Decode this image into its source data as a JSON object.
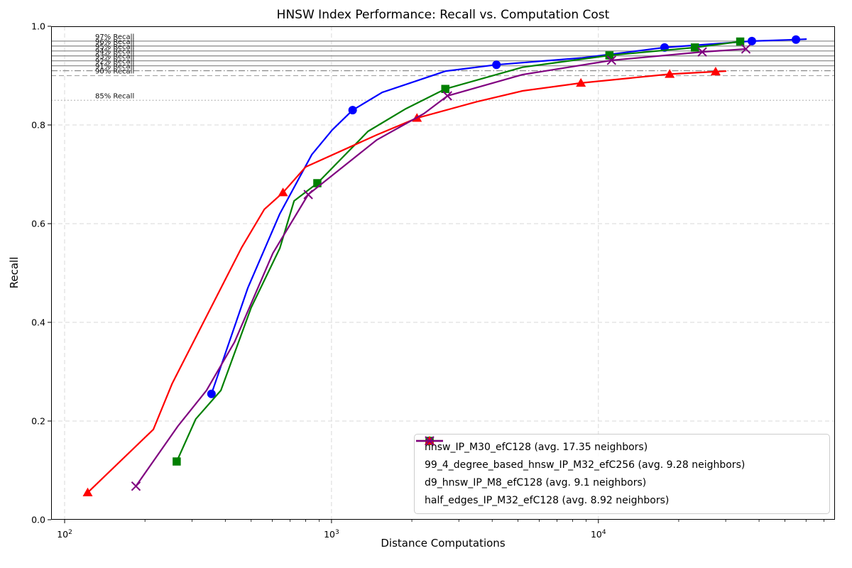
{
  "chart_data": {
    "type": "line",
    "title": "HNSW Index Performance: Recall vs. Computation Cost",
    "xlabel": "Distance Computations",
    "ylabel": "Recall",
    "x_scale": "log",
    "xlim": [
      89,
      77000
    ],
    "ylim": [
      0.0,
      1.0
    ],
    "x_ticks": [
      100,
      1000,
      10000
    ],
    "y_ticks": [
      0.0,
      0.2,
      0.4,
      0.6,
      0.8,
      1.0
    ],
    "grid": {
      "show": true,
      "style": "dashed",
      "color": "#d9d9d9"
    },
    "legend_position": "lower right",
    "reference_lines": [
      {
        "value": 0.97,
        "label": "97% Recall",
        "style": "solid"
      },
      {
        "value": 0.96,
        "label": "96% Recall",
        "style": "solid"
      },
      {
        "value": 0.95,
        "label": "95% Recall",
        "style": "solid"
      },
      {
        "value": 0.94,
        "label": "94% Recall",
        "style": "solid"
      },
      {
        "value": 0.93,
        "label": "93% Recall",
        "style": "solid"
      },
      {
        "value": 0.92,
        "label": "92% Recall",
        "style": "solid"
      },
      {
        "value": 0.91,
        "label": "91% Recall",
        "style": "dashdot"
      },
      {
        "value": 0.9,
        "label": "90% Recall",
        "style": "dashed"
      },
      {
        "value": 0.85,
        "label": "85% Recall",
        "style": "dotted"
      }
    ],
    "series": [
      {
        "label": "hnsw_IP_M30_efC128 (avg. 17.35 neighbors)",
        "color": "#0000ff",
        "marker": "circle",
        "points": [
          [
            355,
            0.255
          ],
          [
            486,
            0.47
          ],
          [
            640,
            0.62
          ],
          [
            844,
            0.74
          ],
          [
            1007,
            0.79
          ],
          [
            1200,
            0.83
          ],
          [
            1550,
            0.866
          ],
          [
            2675,
            0.909
          ],
          [
            4150,
            0.922
          ],
          [
            8700,
            0.936
          ],
          [
            17700,
            0.957
          ],
          [
            37600,
            0.97
          ],
          [
            55000,
            0.973
          ],
          [
            60000,
            0.974
          ]
        ],
        "marker_indices": [
          0,
          5,
          8,
          10,
          11,
          12
        ]
      },
      {
        "label": "99_4_degree_based_hnsw_IP_M32_efC256 (avg. 9.28 neighbors)",
        "color": "#008000",
        "marker": "square",
        "points": [
          [
            263,
            0.118
          ],
          [
            310,
            0.204
          ],
          [
            385,
            0.262
          ],
          [
            500,
            0.43
          ],
          [
            640,
            0.55
          ],
          [
            724,
            0.646
          ],
          [
            885,
            0.682
          ],
          [
            1370,
            0.787
          ],
          [
            1900,
            0.833
          ],
          [
            2670,
            0.873
          ],
          [
            5200,
            0.917
          ],
          [
            11000,
            0.941
          ],
          [
            23000,
            0.957
          ],
          [
            34000,
            0.969
          ]
        ],
        "marker_indices": [
          0,
          6,
          9,
          11,
          12,
          13
        ]
      },
      {
        "label": "d9_hnsw_IP_M8_efC128 (avg. 9.1 neighbors)",
        "color": "#ff0000",
        "marker": "triangle",
        "points": [
          [
            122,
            0.055
          ],
          [
            215,
            0.183
          ],
          [
            253,
            0.276
          ],
          [
            460,
            0.551
          ],
          [
            560,
            0.629
          ],
          [
            658,
            0.663
          ],
          [
            800,
            0.715
          ],
          [
            1480,
            0.78
          ],
          [
            2090,
            0.814
          ],
          [
            3500,
            0.847
          ],
          [
            5200,
            0.869
          ],
          [
            8600,
            0.885
          ],
          [
            18500,
            0.903
          ],
          [
            27500,
            0.908
          ],
          [
            30000,
            0.909
          ]
        ],
        "marker_indices": [
          0,
          5,
          8,
          11,
          12,
          13
        ]
      },
      {
        "label": "half_edges_IP_M32_efC128 (avg. 8.92 neighbors)",
        "color": "#800080",
        "marker": "x",
        "points": [
          [
            185,
            0.068
          ],
          [
            266,
            0.19
          ],
          [
            340,
            0.262
          ],
          [
            433,
            0.36
          ],
          [
            603,
            0.54
          ],
          [
            818,
            0.659
          ],
          [
            1480,
            0.77
          ],
          [
            2220,
            0.823
          ],
          [
            2720,
            0.859
          ],
          [
            5200,
            0.902
          ],
          [
            11200,
            0.931
          ],
          [
            24500,
            0.948
          ],
          [
            35700,
            0.954
          ]
        ],
        "marker_indices": [
          0,
          5,
          8,
          10,
          11,
          12
        ]
      }
    ]
  }
}
